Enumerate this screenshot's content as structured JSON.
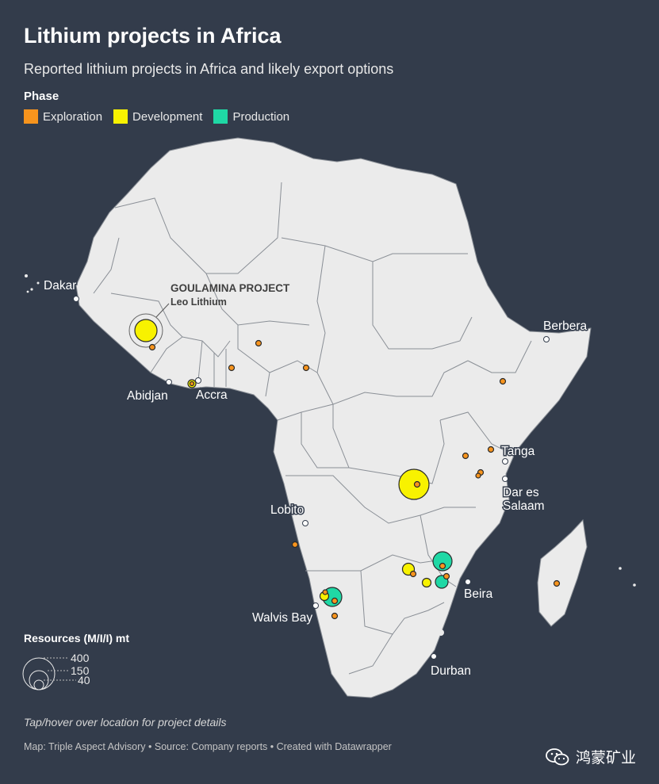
{
  "title": "Lithium projects in Africa",
  "subtitle": "Reported lithium projects in Africa and likely export options",
  "legend": {
    "title": "Phase",
    "items": [
      {
        "label": "Exploration",
        "color": "#f7941d"
      },
      {
        "label": "Development",
        "color": "#f8f200"
      },
      {
        "label": "Production",
        "color": "#1fd8a5"
      }
    ]
  },
  "annotation": {
    "title": "GOULAMINA PROJECT",
    "subtitle": "Leo Lithium"
  },
  "cities": {
    "dakar": "Dakar",
    "abidjan": "Abidjan",
    "accra": "Accra",
    "berbera": "Berbera",
    "tanga": "Tanga",
    "dar_es_salaam_1": "Dar es",
    "dar_es_salaam_2": "Salaam",
    "lobito": "Lobito",
    "beira": "Beira",
    "walvis_bay": "Walvis Bay",
    "durban": "Durban"
  },
  "size_legend": {
    "title": "Resources (M/I/I) mt",
    "values": [
      "400",
      "150",
      "40"
    ]
  },
  "note": "Tap/hover over location for project details",
  "credit": "Map: Triple Aspect Advisory • Source: Company reports • Created with Datawrapper",
  "brand": "鸿蒙矿业",
  "colors": {
    "background": "#333c4b",
    "land": "#ebebeb",
    "borders": "#8a8f96",
    "exploration": "#f7941d",
    "development": "#f8f200",
    "production": "#1fd8a5"
  }
}
